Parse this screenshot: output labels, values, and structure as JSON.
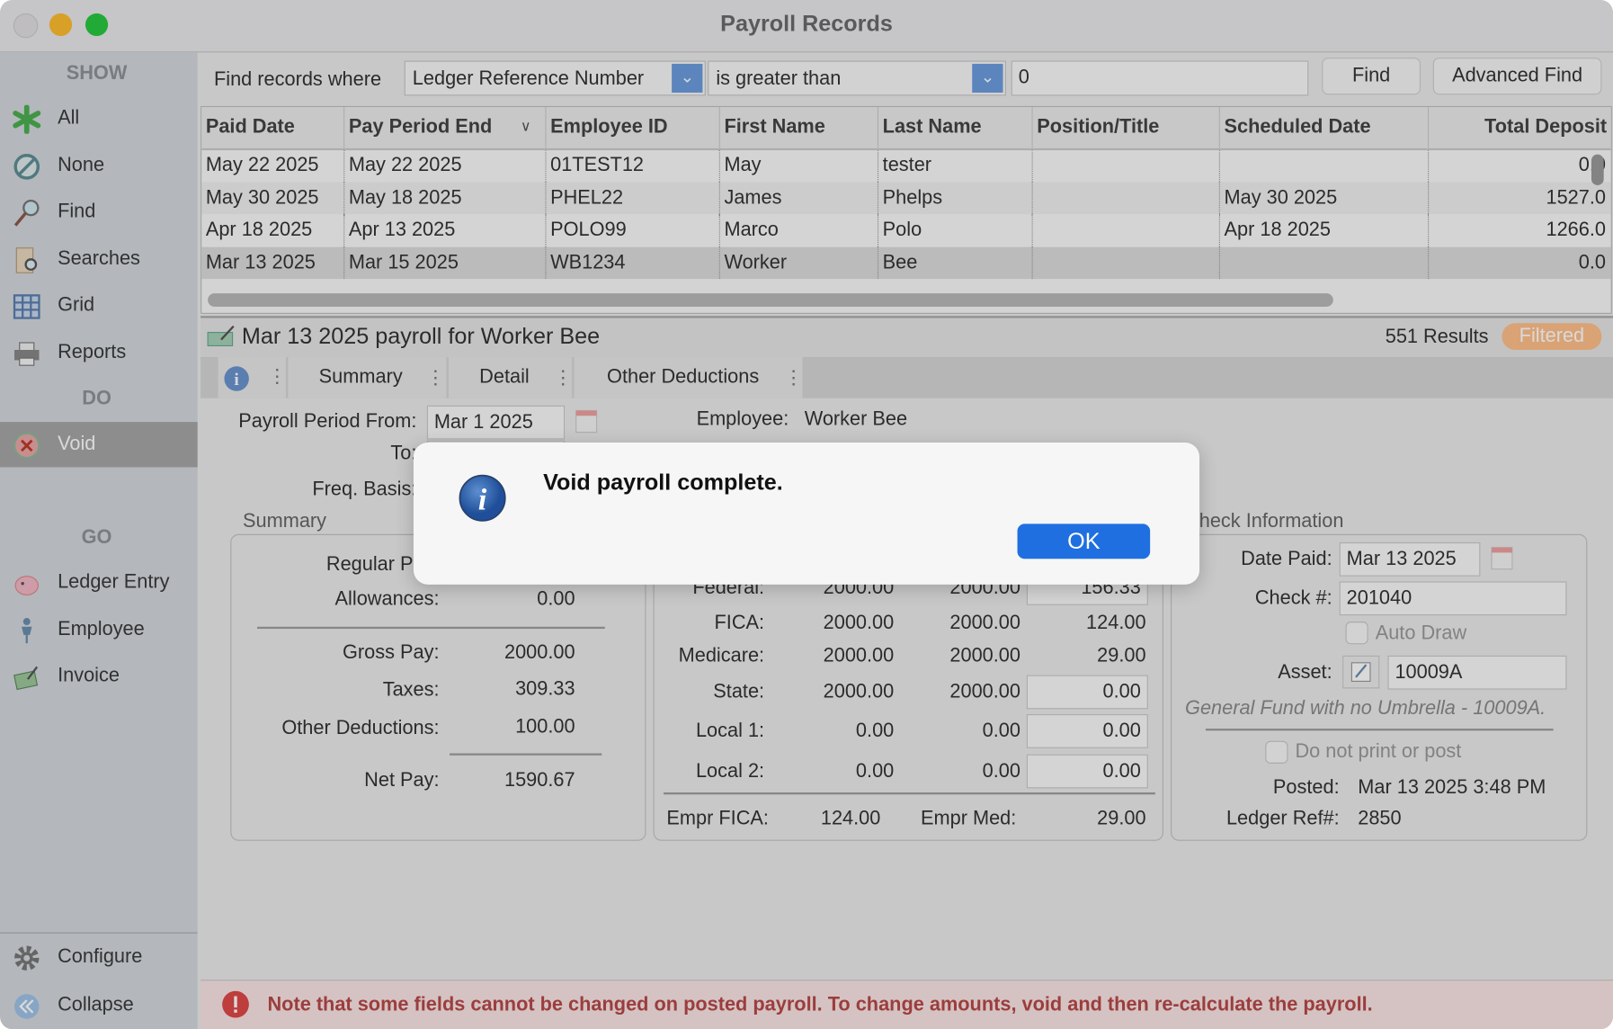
{
  "window": {
    "title": "Payroll Records"
  },
  "sidebar": {
    "show_header": "SHOW",
    "show_items": [
      {
        "label": "All",
        "icon": "asterisk-icon"
      },
      {
        "label": "None",
        "icon": "none-icon"
      },
      {
        "label": "Find",
        "icon": "magnifier-icon"
      },
      {
        "label": "Searches",
        "icon": "searches-icon"
      },
      {
        "label": "Grid",
        "icon": "grid-icon"
      },
      {
        "label": "Reports",
        "icon": "printer-icon"
      }
    ],
    "do_header": "DO",
    "do_items": [
      {
        "label": "Void",
        "icon": "void-icon",
        "selected": true
      }
    ],
    "go_header": "GO",
    "go_items": [
      {
        "label": "Ledger Entry",
        "icon": "piggy-bank-icon"
      },
      {
        "label": "Employee",
        "icon": "employee-icon"
      },
      {
        "label": "Invoice",
        "icon": "invoice-icon"
      }
    ],
    "configure": "Configure",
    "collapse": "Collapse"
  },
  "find_bar": {
    "label": "Find records where",
    "field": "Ledger Reference Number",
    "operator": "is greater than",
    "value": "0",
    "find_button": "Find",
    "advanced_button": "Advanced Find"
  },
  "table": {
    "columns": [
      "Paid Date",
      "Pay Period End",
      "Employee ID",
      "First Name",
      "Last Name",
      "Position/Title",
      "Scheduled Date",
      "Total Deposit"
    ],
    "rows": [
      [
        "May 22 2025",
        "May 22 2025",
        "01TEST12",
        "May",
        "tester",
        "",
        "",
        "0.0"
      ],
      [
        "May 30 2025",
        "May 18 2025",
        "PHEL22",
        "James",
        "Phelps",
        "",
        "May 30 2025",
        "1527.0"
      ],
      [
        "Apr 18 2025",
        "Apr 13 2025",
        "POLO99",
        "Marco",
        "Polo",
        "",
        "Apr 18 2025",
        "1266.0"
      ],
      [
        "Mar 13 2025",
        "Mar 15 2025",
        "WB1234",
        "Worker",
        "Bee",
        "",
        "",
        "0.0"
      ]
    ]
  },
  "record": {
    "title": "Mar 13 2025 payroll for Worker Bee",
    "results": "551 Results",
    "filter_badge": "Filtered",
    "tabs": [
      "Summary",
      "Detail",
      "Other Deductions"
    ]
  },
  "form": {
    "period_from_label": "Payroll Period From:",
    "period_from": "Mar 1 2025",
    "to_label": "To:",
    "freq_label": "Freq. Basis:",
    "employee_label": "Employee:",
    "employee": "Worker Bee",
    "summary": {
      "title": "Summary",
      "regular_pay_label": "Regular Pay:",
      "allowances_label": "Allowances:",
      "allowances": "0.00",
      "gross_label": "Gross Pay:",
      "gross": "2000.00",
      "taxes_label": "Taxes:",
      "taxes": "309.33",
      "other_label": "Other Deductions:",
      "other": "100.00",
      "net_label": "Net Pay:",
      "net": "1590.67"
    },
    "taxes": {
      "rows": [
        {
          "label": "Federal:",
          "a": "2000.00",
          "b": "2000.00",
          "c": "156.33",
          "input": true
        },
        {
          "label": "FICA:",
          "a": "2000.00",
          "b": "2000.00",
          "c": "124.00",
          "input": false
        },
        {
          "label": "Medicare:",
          "a": "2000.00",
          "b": "2000.00",
          "c": "29.00",
          "input": false
        },
        {
          "label": "State:",
          "a": "2000.00",
          "b": "2000.00",
          "c": "0.00",
          "input": true
        },
        {
          "label": "Local 1:",
          "a": "0.00",
          "b": "0.00",
          "c": "0.00",
          "input": true
        },
        {
          "label": "Local 2:",
          "a": "0.00",
          "b": "0.00",
          "c": "0.00",
          "input": true
        }
      ],
      "empr_fica_label": "Empr FICA:",
      "empr_fica": "124.00",
      "empr_med_label": "Empr Med:",
      "empr_med": "29.00"
    },
    "check": {
      "title": "Check Information",
      "date_paid_label": "Date Paid:",
      "date_paid": "Mar 13 2025",
      "check_no_label": "Check #:",
      "check_no": "201040",
      "auto_draw": "Auto Draw",
      "asset_label": "Asset:",
      "asset": "10009A",
      "asset_desc": "General Fund with no Umbrella - 10009A.",
      "no_print": "Do not print or post",
      "posted_label": "Posted:",
      "posted": "Mar 13 2025 3:48 PM",
      "ledger_ref_label": "Ledger Ref#:",
      "ledger_ref": "2850"
    }
  },
  "note": "Note that some fields cannot be changed on posted payroll. To change amounts, void and then re-calculate the payroll.",
  "dialog": {
    "message": "Void payroll complete.",
    "ok": "OK"
  },
  "colors": {
    "accent": "#1f6fe0",
    "filtered_badge": "#ffc08a",
    "note_text": "#b84848"
  }
}
